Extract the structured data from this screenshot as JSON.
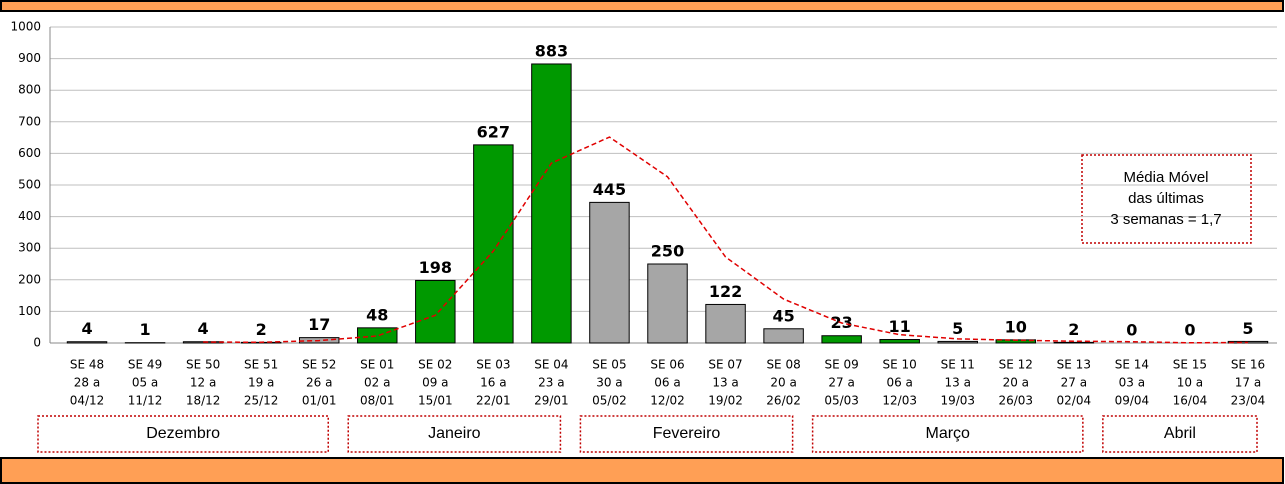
{
  "chart_data": {
    "type": "bar",
    "categories": [
      [
        "SE 48",
        "28 a",
        "04/12"
      ],
      [
        "SE 49",
        "05 a",
        "11/12"
      ],
      [
        "SE 50",
        "12 a",
        "18/12"
      ],
      [
        "SE 51",
        "19 a",
        "25/12"
      ],
      [
        "SE 52",
        "26 a",
        "01/01"
      ],
      [
        "SE 01",
        "02 a",
        "08/01"
      ],
      [
        "SE 02",
        "09 a",
        "15/01"
      ],
      [
        "SE 03",
        "16 a",
        "22/01"
      ],
      [
        "SE 04",
        "23 a",
        "29/01"
      ],
      [
        "SE 05",
        "30 a",
        "05/02"
      ],
      [
        "SE 06",
        "06 a",
        "12/02"
      ],
      [
        "SE 07",
        "13 a",
        "19/02"
      ],
      [
        "SE 08",
        "20 a",
        "26/02"
      ],
      [
        "SE 09",
        "27 a",
        "05/03"
      ],
      [
        "SE 10",
        "06 a",
        "12/03"
      ],
      [
        "SE 11",
        "13 a",
        "19/03"
      ],
      [
        "SE 12",
        "20 a",
        "26/03"
      ],
      [
        "SE 13",
        "27 a",
        "02/04"
      ],
      [
        "SE 14",
        "03 a",
        "09/04"
      ],
      [
        "SE 15",
        "10 a",
        "16/04"
      ],
      [
        "SE 16",
        "17 a",
        "23/04"
      ]
    ],
    "values": [
      4,
      1,
      4,
      2,
      17,
      48,
      198,
      627,
      883,
      445,
      250,
      122,
      45,
      23,
      11,
      5,
      10,
      2,
      0,
      0,
      5
    ],
    "colors": [
      "#a6a6a6",
      "#a6a6a6",
      "#a6a6a6",
      "#a6a6a6",
      "#a6a6a6",
      "#009900",
      "#009900",
      "#009900",
      "#009900",
      "#a6a6a6",
      "#a6a6a6",
      "#a6a6a6",
      "#a6a6a6",
      "#009900",
      "#009900",
      "#a6a6a6",
      "#009900",
      "#009900",
      "#a6a6a6",
      "#a6a6a6",
      "#a6a6a6"
    ],
    "moving_average": {
      "color": "#e00000",
      "values": [
        null,
        null,
        3,
        2.3,
        7.7,
        22.3,
        87.7,
        291,
        569.3,
        651.7,
        526,
        272.3,
        139,
        63.3,
        26.3,
        13,
        8.7,
        5.7,
        4,
        0.7,
        1.7
      ]
    },
    "annotation": [
      "Média Móvel",
      "das últimas",
      "3 semanas = 1,7"
    ],
    "months": [
      {
        "label": "Dezembro",
        "span": 5
      },
      {
        "label": "Janeiro",
        "span": 4
      },
      {
        "label": "Fevereiro",
        "span": 4
      },
      {
        "label": "Março",
        "span": 5
      },
      {
        "label": "Abril",
        "span": 3
      }
    ],
    "ylim": [
      0,
      1000
    ],
    "yticks": [
      0,
      100,
      200,
      300,
      400,
      500,
      600,
      700,
      800,
      900,
      1000
    ],
    "grid": true
  }
}
